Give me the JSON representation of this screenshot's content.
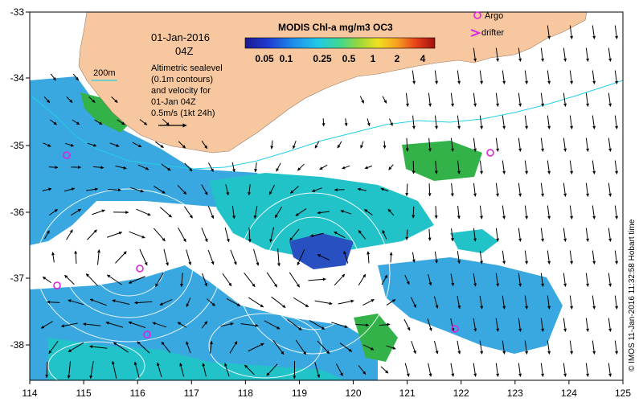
{
  "map": {
    "date_line": "01-Jan-2016",
    "time_line": "04Z",
    "contour_label": "200m",
    "description_lines": [
      "Altimetric sealevel",
      "(0.1m contours)",
      "and velocity for",
      "01-Jan 04Z",
      "0.5m/s (1kt 24h)"
    ],
    "colorbar_title": "MODIS Chl-a mg/m3 OC3",
    "colorbar_ticks": [
      "0.05",
      "0.1",
      "0.25",
      "0.5",
      "1",
      "2",
      "4"
    ],
    "legend": {
      "argo": "Argo",
      "drifter": "drifter"
    },
    "credit": "© IMOS 11-Jan-2016 11:32:58 Hobart time",
    "lon_ticks": [
      "114",
      "115",
      "116",
      "117",
      "118",
      "119",
      "120",
      "121",
      "122",
      "123",
      "124",
      "125"
    ],
    "lat_ticks": [
      "-33",
      "-34",
      "-35",
      "-36",
      "-37",
      "-38"
    ],
    "colors": {
      "land": "#f7c8a0",
      "cloud": "#ffffff",
      "ocean_blue": "#3aa8e0",
      "ocean_teal": "#22c3c8",
      "ocean_deep": "#2850c0",
      "ocean_green": "#33b24a",
      "contour_200m": "#22d0e8",
      "argo": "#e020e0"
    }
  }
}
